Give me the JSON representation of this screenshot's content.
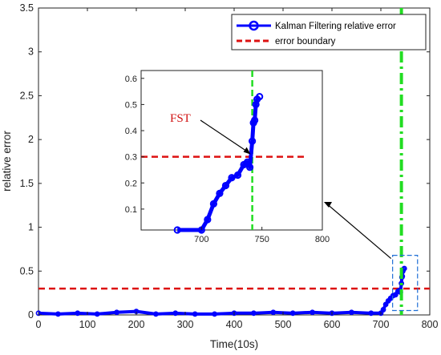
{
  "chart_data": {
    "type": "line",
    "xlabel": "Time(10s)",
    "ylabel": "relative error",
    "xlim": [
      0,
      800
    ],
    "ylim": [
      0,
      3.5
    ],
    "xticks": [
      0,
      100,
      200,
      300,
      400,
      500,
      600,
      700,
      800
    ],
    "yticks": [
      0,
      0.5,
      1,
      1.5,
      2,
      2.5,
      3,
      3.5
    ],
    "grid": false,
    "legend_position": "top-right",
    "series": [
      {
        "name": "Kalman Filtering relative error",
        "color": "#0000ff",
        "marker": "circle",
        "x": [
          0,
          40,
          80,
          120,
          160,
          200,
          240,
          280,
          320,
          360,
          400,
          440,
          480,
          520,
          560,
          600,
          640,
          680,
          700,
          705,
          710,
          715,
          720,
          725,
          730,
          735,
          738,
          740,
          742,
          743,
          744,
          745,
          746,
          748
        ],
        "y": [
          0.02,
          0.01,
          0.02,
          0.01,
          0.03,
          0.04,
          0.01,
          0.02,
          0.01,
          0.01,
          0.02,
          0.02,
          0.03,
          0.02,
          0.03,
          0.02,
          0.03,
          0.02,
          0.02,
          0.06,
          0.12,
          0.16,
          0.19,
          0.22,
          0.23,
          0.27,
          0.28,
          0.26,
          0.36,
          0.43,
          0.44,
          0.5,
          0.52,
          0.53
        ]
      },
      {
        "name": "error boundary",
        "color": "#dd1111",
        "style": "dashed",
        "y": 0.3
      }
    ],
    "vertical_marker": {
      "color": "#22dd22",
      "style": "dash-dot",
      "x": 742
    },
    "inset": {
      "xlim": [
        650,
        800
      ],
      "ylim": [
        0.02,
        0.63
      ],
      "xticks": [
        700,
        750,
        800
      ],
      "yticks": [
        0.1,
        0.2,
        0.3,
        0.4,
        0.5,
        0.6
      ],
      "zoom_box": {
        "x": [
          724,
          775
        ],
        "y": [
          0.05,
          0.68
        ]
      },
      "annotation": {
        "text": "FST",
        "x": 742,
        "y": 0.3
      }
    }
  }
}
